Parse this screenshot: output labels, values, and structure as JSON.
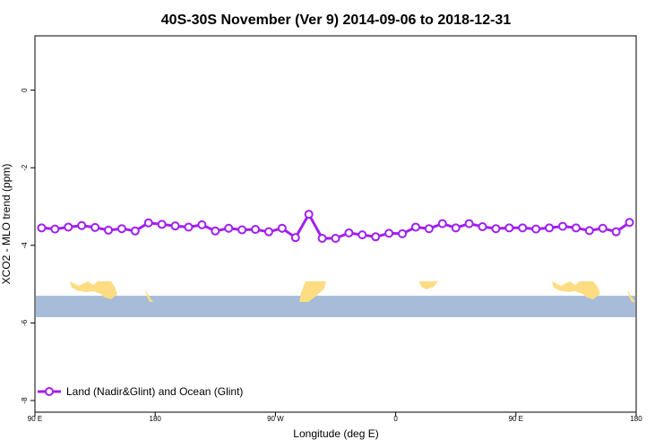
{
  "chart_data": {
    "type": "line",
    "title": "40S-30S November (Ver 9)   2014-09-06 to 2018-12-31",
    "xlabel": "Longitude (deg E)",
    "ylabel": "XCO2 - MLO trend (ppm)",
    "xlim": [
      90,
      540
    ],
    "ylim": [
      -8.3,
      1.4
    ],
    "x_ticks": [
      {
        "value": 90,
        "label": "90 E"
      },
      {
        "value": 180,
        "label": "180"
      },
      {
        "value": 270,
        "label": "90 W"
      },
      {
        "value": 360,
        "label": "0"
      },
      {
        "value": 450,
        "label": "90 E"
      },
      {
        "value": 540,
        "label": "180"
      }
    ],
    "y_ticks": [
      {
        "value": 0,
        "label": "0"
      },
      {
        "value": -2,
        "label": "-2"
      },
      {
        "value": -4,
        "label": "-4"
      },
      {
        "value": -6,
        "label": "-6"
      },
      {
        "value": -8,
        "label": "-8"
      }
    ],
    "series": [
      {
        "name": "Land (Nadir&Glint) and Ocean (Glint)",
        "color": "#a020f0",
        "x": [
          95,
          105,
          115,
          125,
          135,
          145,
          155,
          165,
          175,
          185,
          195,
          205,
          215,
          225,
          235,
          245,
          255,
          265,
          275,
          285,
          295,
          305,
          315,
          325,
          335,
          345,
          355,
          365,
          375,
          385,
          395,
          405,
          415,
          425,
          435,
          445,
          455,
          465,
          475,
          485,
          495,
          505,
          515,
          525,
          535
        ],
        "y": [
          -3.55,
          -3.58,
          -3.53,
          -3.49,
          -3.54,
          -3.61,
          -3.57,
          -3.63,
          -3.42,
          -3.46,
          -3.5,
          -3.53,
          -3.47,
          -3.63,
          -3.56,
          -3.6,
          -3.59,
          -3.65,
          -3.56,
          -3.8,
          -3.2,
          -3.82,
          -3.82,
          -3.68,
          -3.73,
          -3.78,
          -3.69,
          -3.7,
          -3.53,
          -3.57,
          -3.44,
          -3.55,
          -3.44,
          -3.52,
          -3.57,
          -3.55,
          -3.55,
          -3.58,
          -3.55,
          -3.51,
          -3.55,
          -3.62,
          -3.56,
          -3.65,
          -3.41
        ]
      }
    ],
    "map_strip": {
      "ocean_color": "#a7bcd9",
      "land_color": "#fddc82",
      "y_range": [
        -5.3,
        -5.85
      ]
    },
    "grid": false,
    "legend_position": "bottom-left"
  }
}
